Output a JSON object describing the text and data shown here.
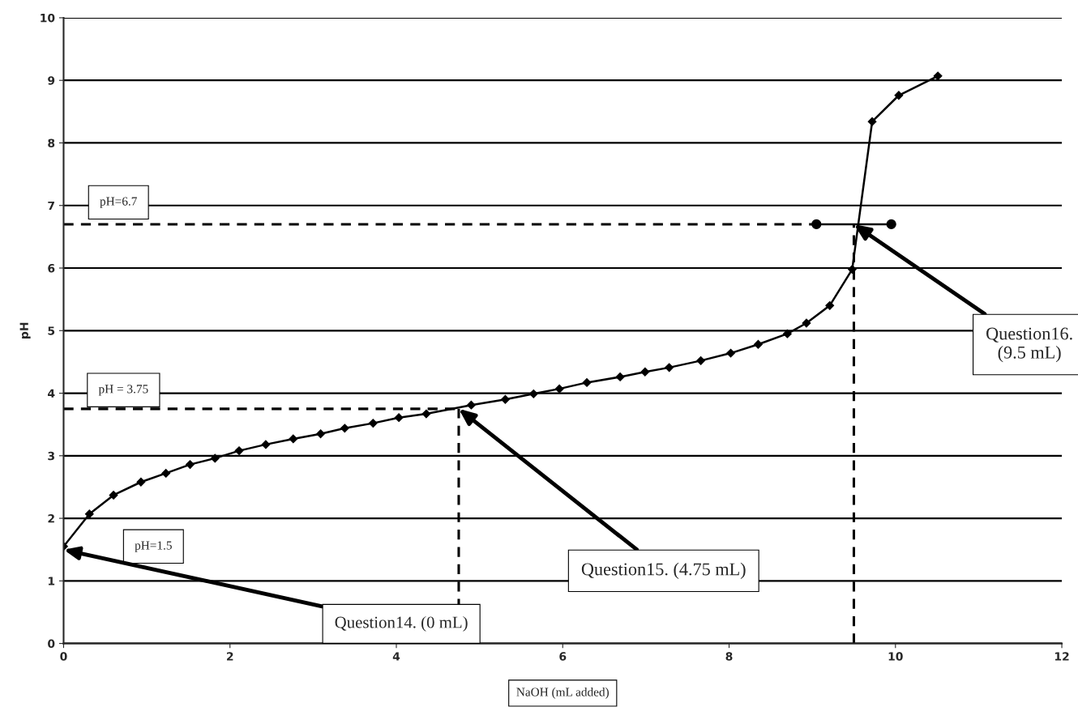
{
  "chart_data": {
    "type": "line",
    "xlabel": "NaOH (mL added)",
    "ylabel": "pH",
    "xlim": [
      0,
      12
    ],
    "ylim": [
      0,
      10
    ],
    "xticks": [
      0,
      2,
      4,
      6,
      8,
      10,
      12
    ],
    "yticks": [
      0,
      1,
      2,
      3,
      4,
      5,
      6,
      7,
      8,
      9,
      10
    ],
    "grid": "y",
    "legend": false,
    "series": [
      {
        "color": "#000000",
        "marker": "diamond",
        "line_style": "solid",
        "x": [
          0,
          0.31,
          0.6,
          0.93,
          1.23,
          1.52,
          1.82,
          2.11,
          2.43,
          2.76,
          3.09,
          3.38,
          3.72,
          4.03,
          4.36,
          4.9,
          5.31,
          5.65,
          5.96,
          6.29,
          6.69,
          6.99,
          7.28,
          7.66,
          8.02,
          8.35,
          8.7,
          8.93,
          9.21,
          9.48,
          9.72,
          10.04,
          10.51
        ],
        "values": [
          1.55,
          2.07,
          2.37,
          2.58,
          2.72,
          2.86,
          2.96,
          3.08,
          3.18,
          3.27,
          3.35,
          3.44,
          3.52,
          3.61,
          3.67,
          3.81,
          3.9,
          3.99,
          4.07,
          4.17,
          4.26,
          4.34,
          4.41,
          4.52,
          4.64,
          4.78,
          4.95,
          5.12,
          5.4,
          5.98,
          8.34,
          8.76,
          9.07
        ]
      },
      {
        "color": "#000000",
        "marker": "circle",
        "line_style": "solid",
        "x": [
          9.05,
          9.95
        ],
        "values": [
          6.7,
          6.7
        ]
      },
      {
        "color": "#000000",
        "marker": "none",
        "line_style": "dashed",
        "x": [
          0,
          9.05
        ],
        "values": [
          6.7,
          6.7
        ]
      },
      {
        "color": "#000000",
        "marker": "none",
        "line_style": "dashed",
        "x": [
          9.5,
          9.5
        ],
        "values": [
          0,
          6.7
        ]
      },
      {
        "color": "#000000",
        "marker": "none",
        "line_style": "dashed",
        "x": [
          0,
          4.75
        ],
        "values": [
          3.75,
          3.75
        ]
      },
      {
        "color": "#000000",
        "marker": "none",
        "line_style": "dashed",
        "x": [
          4.75,
          4.75
        ],
        "values": [
          0,
          3.75
        ]
      }
    ],
    "annotations": [
      "pH=6.7",
      "pH = 3.75",
      "pH=1.5",
      {
        "text": "Question14. (0 mL)",
        "x": 0,
        "y": 1.5
      },
      {
        "text": "Question15. (4.75 mL)",
        "x": 4.75,
        "y": 3.75
      },
      {
        "text": "Question16.\n(9.5 mL)",
        "x": 9.5,
        "y": 6.7
      }
    ]
  }
}
